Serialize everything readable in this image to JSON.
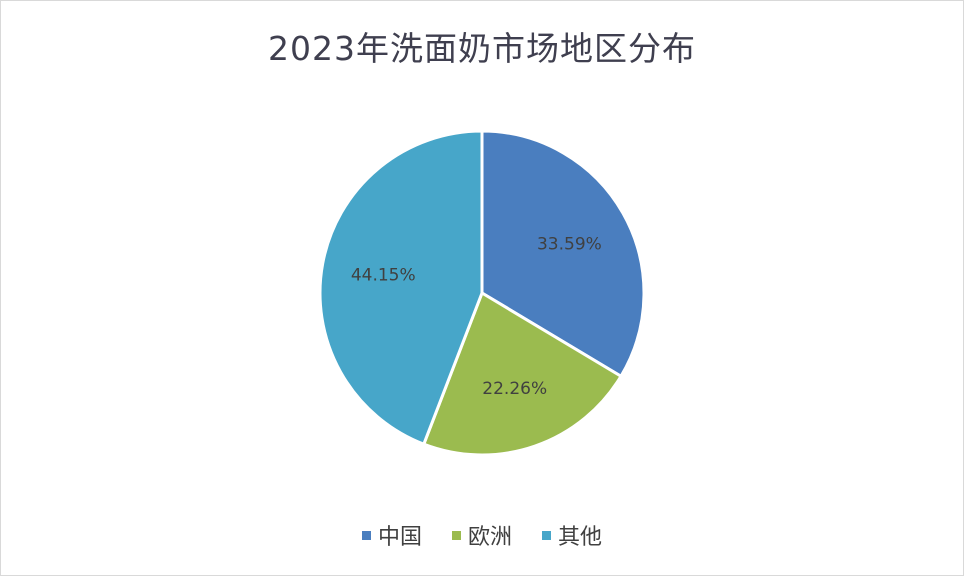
{
  "chart_data": {
    "type": "pie",
    "title": "2023年洗面奶市场地区分布",
    "slices": [
      {
        "label": "中国",
        "value": 33.59,
        "display": "33.59%",
        "color": "#4a7ebf"
      },
      {
        "label": "欧洲",
        "value": 22.26,
        "display": "22.26%",
        "color": "#9bbb4f"
      },
      {
        "label": "其他",
        "value": 44.15,
        "display": "44.15%",
        "color": "#47a6c9"
      }
    ],
    "legend_position": "bottom",
    "start_angle": "12 o'clock",
    "direction": "clockwise"
  }
}
